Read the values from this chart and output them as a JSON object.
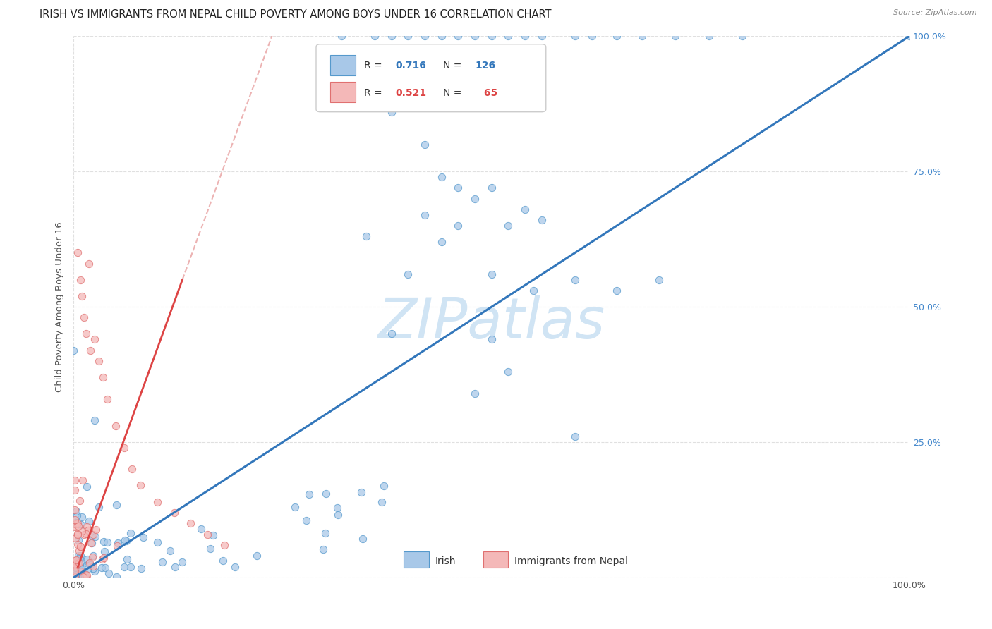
{
  "title": "IRISH VS IMMIGRANTS FROM NEPAL CHILD POVERTY AMONG BOYS UNDER 16 CORRELATION CHART",
  "source": "Source: ZipAtlas.com",
  "ylabel": "Child Poverty Among Boys Under 16",
  "watermark": "ZIPatlas",
  "irish_R": 0.716,
  "irish_N": 126,
  "nepal_R": 0.521,
  "nepal_N": 65,
  "irish_color": "#a8c8e8",
  "irish_edge_color": "#5599cc",
  "irish_line_color": "#3377bb",
  "nepal_color": "#f4b8b8",
  "nepal_edge_color": "#e07070",
  "nepal_line_color": "#dd4444",
  "nepal_dash_color": "#e8a0a0",
  "background_color": "#ffffff",
  "grid_color": "#e0e0e0",
  "right_tick_color": "#4488cc",
  "title_color": "#222222",
  "source_color": "#888888",
  "watermark_color": "#d0e4f4",
  "ylabel_color": "#555555"
}
